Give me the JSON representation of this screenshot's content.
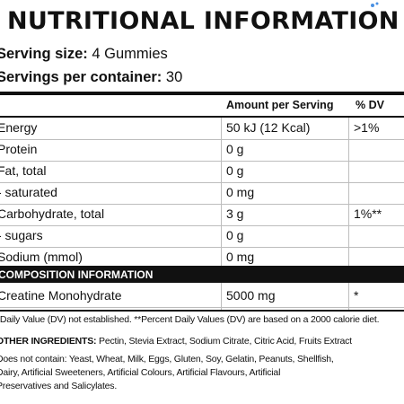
{
  "label": {
    "title": "NUTRITIONAL INFORMATION",
    "serving_size_label": "Serving size:",
    "serving_size_value": "4 Gummies",
    "servings_label": "Servings per container:",
    "servings_value": "30"
  },
  "table": {
    "header_amount": "Amount per Serving",
    "header_dv": "% DV",
    "rows": [
      {
        "name": "Energy",
        "amount": "50 kJ (12 Kcal)",
        "dv": ">1%"
      },
      {
        "name": "Protein",
        "amount": "0 g",
        "dv": ""
      },
      {
        "name": "Fat, total",
        "amount": "0 g",
        "dv": ""
      },
      {
        "name": "- saturated",
        "amount": "0 mg",
        "dv": ""
      },
      {
        "name": "Carbohydrate, total",
        "amount": "3 g",
        "dv": "1%**"
      },
      {
        "name": "- sugars",
        "amount": "0 g",
        "dv": ""
      },
      {
        "name": "Sodium (mmol)",
        "amount": "0 mg",
        "dv": ""
      }
    ],
    "composition_header": "COMPOSITION INFORMATION",
    "composition_rows": [
      {
        "name": "Creatine Monohydrate",
        "amount": "5000 mg",
        "dv": "*"
      }
    ]
  },
  "footnotes": {
    "daily_value_note": "*Daily Value (DV) not established. **Percent Daily Values (DV) are based on a 2000 calorie diet.",
    "other_ingredients_label": "OTHER INGREDIENTS:",
    "other_ingredients_value": "Pectin, Stevia Extract, Sodium Citrate, Citric Acid, Fruits Extract",
    "allergen_line1": "Does not contain: Yeast, Wheat, Milk, Eggs, Gluten, Soy, Gelatin, Peanuts, Shellfish,",
    "allergen_line2": "Dairy, Artificial Sweeteners, Artificial Colours, Artificial Flavours, Artificial",
    "allergen_line3": "Preservatives and Salicylates."
  },
  "colors": {
    "text": "#111111",
    "band": "#111111",
    "divider": "#bdbdbd",
    "corner_mark": "#4a90e2"
  },
  "icons": {
    "corner_mark": "sparkle-icon"
  }
}
